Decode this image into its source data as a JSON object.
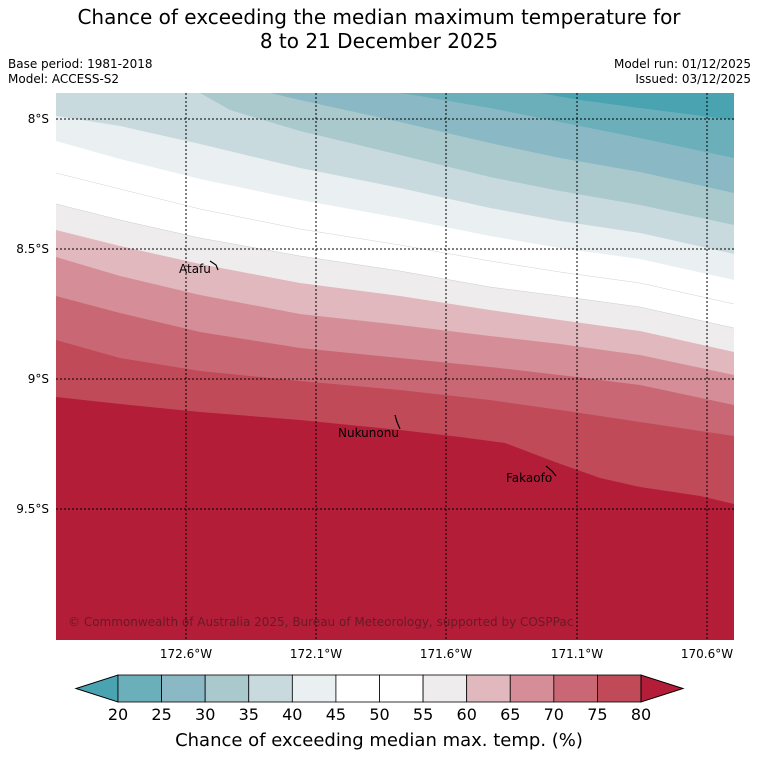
{
  "title": {
    "line1": "Chance of exceeding the median maximum temperature for",
    "line2": "8 to 21 December 2025"
  },
  "meta": {
    "base_period": "Base period: 1981-2018",
    "model": "Model: ACCESS-S2",
    "model_run": "Model run: 01/12/2025",
    "issued": "Issued: 03/12/2025"
  },
  "map": {
    "lat_labels": [
      "8°S",
      "8.5°S",
      "9°S",
      "9.5°S"
    ],
    "lon_labels": [
      "172.6°W",
      "172.1°W",
      "171.6°W",
      "171.1°W",
      "170.6°W"
    ],
    "places": [
      "Atafu",
      "Nukunonu",
      "Fakaofo"
    ],
    "copyright": "© Commonwealth of Australia 2025, Bureau of Meteorology, supported by COSPPac"
  },
  "legend": {
    "ticks": [
      "20",
      "25",
      "30",
      "35",
      "40",
      "45",
      "50",
      "55",
      "60",
      "65",
      "70",
      "75",
      "80"
    ],
    "colors": [
      "#4aa3b0",
      "#6aafba",
      "#8ab8c4",
      "#a9c9cd",
      "#c9dadf",
      "#eaf0f2",
      "#ffffff",
      "#ffffff",
      "#efeced",
      "#e1b8bd",
      "#d58e97",
      "#c96874",
      "#c04a58",
      "#b31d38"
    ],
    "label": "Chance of exceeding median max. temp. (%)"
  }
}
